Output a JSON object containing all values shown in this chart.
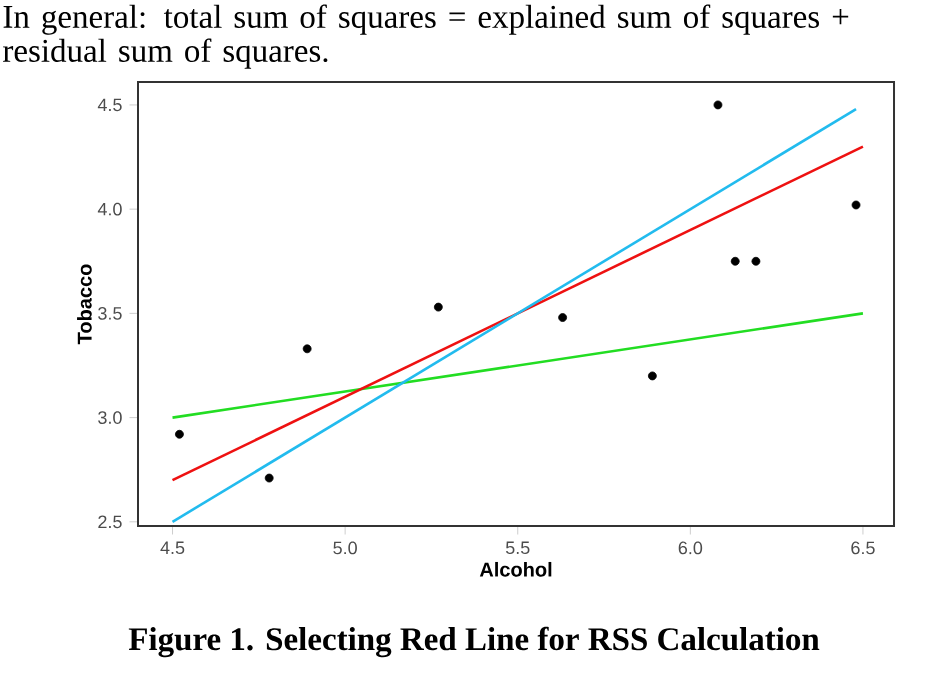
{
  "chart_data": {
    "type": "scatter",
    "annotations": [
      "In general: total sum of squares = explained sum of squares + residual sum of squares.",
      "Figure 1. Selecting Red Line for RSS Calculation"
    ],
    "xlabel": "Alcohol",
    "ylabel": "Tobacco",
    "x": [
      4.52,
      4.78,
      4.89,
      5.27,
      5.63,
      5.89,
      6.13,
      6.19,
      6.48,
      6.08
    ],
    "series": [
      {
        "marker": "circle",
        "color": "#000000",
        "values": [
          2.92,
          2.71,
          3.33,
          3.53,
          3.48,
          3.2,
          3.75,
          3.75,
          4.02,
          4.5
        ]
      },
      {
        "type": "line",
        "marker": "none",
        "color": "#22dd22",
        "x": [
          4.5,
          6.5
        ],
        "values": [
          3.0,
          3.5
        ]
      },
      {
        "type": "line",
        "marker": "none",
        "color": "#ee1111",
        "x": [
          4.5,
          6.5
        ],
        "values": [
          2.7,
          4.3
        ]
      },
      {
        "type": "line",
        "marker": "none",
        "color": "#22bbee",
        "x": [
          4.5,
          6.48
        ],
        "values": [
          2.5,
          4.48
        ]
      }
    ],
    "xlim": [
      4.4,
      6.59
    ],
    "ylim": [
      2.48,
      4.61
    ],
    "xticks": [
      4.5,
      {
        "value": 5,
        "label": "5.0"
      },
      5.5,
      {
        "value": 6,
        "label": "6.0"
      },
      6.5
    ],
    "yticks": [
      2.5,
      {
        "value": 3,
        "label": "3.0"
      },
      3.5,
      {
        "value": 4,
        "label": "4.0"
      },
      4.5
    ],
    "grid": false
  }
}
